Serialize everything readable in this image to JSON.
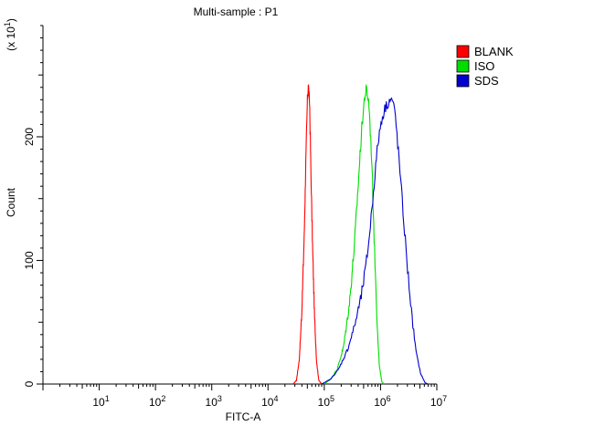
{
  "chart_data": {
    "type": "histogram",
    "title": "Multi-sample : P1",
    "xlabel": "FITC-A",
    "ylabel": "Count",
    "y_multiplier_label": "(x 10",
    "y_multiplier_exp": "1",
    "x_scale": "log",
    "xlim": [
      1,
      10000000
    ],
    "ylim": [
      0,
      290
    ],
    "x_tick_labels": [
      {
        "base": "10",
        "exp": "1",
        "value": 10
      },
      {
        "base": "10",
        "exp": "2",
        "value": 100
      },
      {
        "base": "10",
        "exp": "3",
        "value": 1000
      },
      {
        "base": "10",
        "exp": "4",
        "value": 10000
      },
      {
        "base": "10",
        "exp": "5",
        "value": 100000
      },
      {
        "base": "10",
        "exp": "6",
        "value": 1000000
      },
      {
        "base": "10",
        "exp": "7",
        "value": 10000000
      }
    ],
    "y_ticks": [
      0,
      100,
      200
    ],
    "legend_position": "top-right",
    "series": [
      {
        "name": "BLANK",
        "color": "#ff0000",
        "peak_x": 52000,
        "peak_y": 243,
        "points": [
          [
            28000,
            0
          ],
          [
            32000,
            3
          ],
          [
            36000,
            20
          ],
          [
            40000,
            60
          ],
          [
            44000,
            120
          ],
          [
            47000,
            180
          ],
          [
            50000,
            228
          ],
          [
            52000,
            243
          ],
          [
            55000,
            225
          ],
          [
            58000,
            170
          ],
          [
            62000,
            110
          ],
          [
            67000,
            55
          ],
          [
            73000,
            18
          ],
          [
            80000,
            3
          ],
          [
            90000,
            0
          ]
        ]
      },
      {
        "name": "ISO",
        "color": "#00dd00",
        "peak_x": 560000,
        "peak_y": 238,
        "points": [
          [
            100000,
            0
          ],
          [
            130000,
            4
          ],
          [
            170000,
            12
          ],
          [
            220000,
            30
          ],
          [
            280000,
            65
          ],
          [
            340000,
            110
          ],
          [
            400000,
            160
          ],
          [
            460000,
            205
          ],
          [
            520000,
            232
          ],
          [
            560000,
            238
          ],
          [
            620000,
            228
          ],
          [
            700000,
            180
          ],
          [
            780000,
            110
          ],
          [
            870000,
            50
          ],
          [
            950000,
            15
          ],
          [
            1050000,
            2
          ],
          [
            1150000,
            0
          ]
        ]
      },
      {
        "name": "SDS",
        "color": "#0000cc",
        "peak_x": 1600000,
        "peak_y": 230,
        "points": [
          [
            90000,
            0
          ],
          [
            130000,
            4
          ],
          [
            180000,
            12
          ],
          [
            260000,
            28
          ],
          [
            350000,
            48
          ],
          [
            450000,
            70
          ],
          [
            550000,
            95
          ],
          [
            650000,
            125
          ],
          [
            760000,
            160
          ],
          [
            900000,
            195
          ],
          [
            1050000,
            215
          ],
          [
            1250000,
            225
          ],
          [
            1450000,
            230
          ],
          [
            1650000,
            229
          ],
          [
            1850000,
            215
          ],
          [
            2100000,
            185
          ],
          [
            2500000,
            140
          ],
          [
            3000000,
            95
          ],
          [
            3600000,
            55
          ],
          [
            4300000,
            25
          ],
          [
            5200000,
            8
          ],
          [
            6200000,
            1
          ],
          [
            7000000,
            0
          ]
        ]
      }
    ]
  }
}
